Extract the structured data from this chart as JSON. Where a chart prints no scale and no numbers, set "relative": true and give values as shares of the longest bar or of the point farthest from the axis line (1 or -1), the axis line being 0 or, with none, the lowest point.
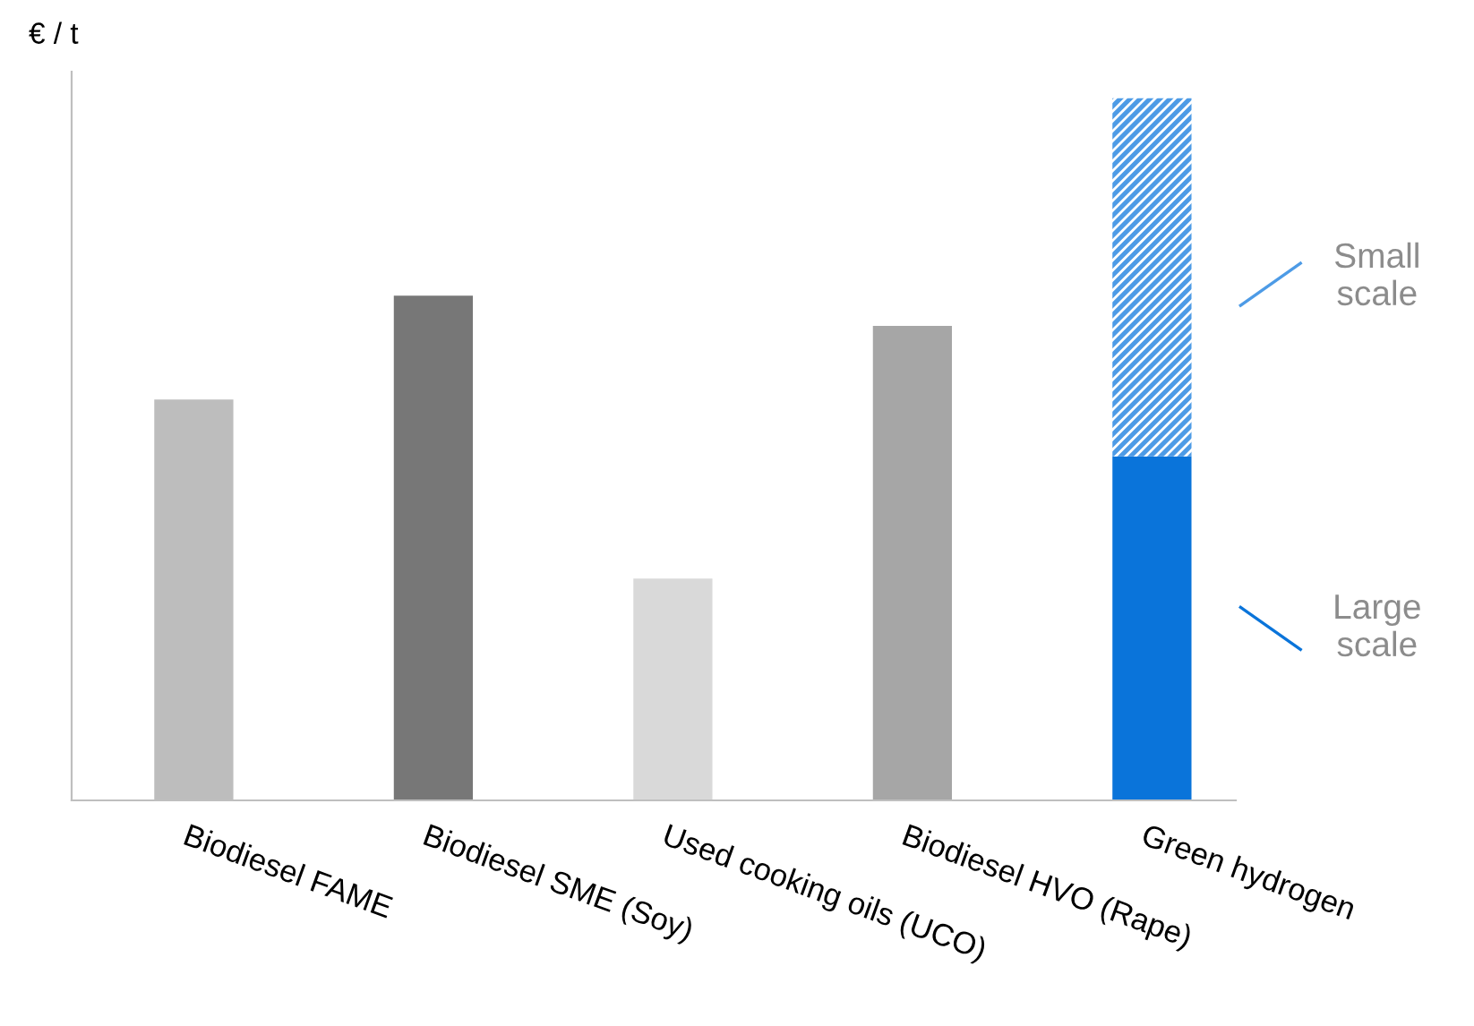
{
  "chart_data": {
    "type": "bar",
    "relative": true,
    "stacked": true,
    "ylabel": "€ / t",
    "categories": [
      "Biodiesel FAME",
      "Biodiesel SME (Soy)",
      "Used cooking oils (UCO)",
      "Biodiesel HVO (Rape)",
      "Green hydrogen"
    ],
    "series": [
      {
        "name": "Large scale",
        "colors": [
          "#bdbdbd",
          "#777777",
          "#d9d9d9",
          "#a6a6a6",
          "#0a74da"
        ],
        "values": [
          0.571,
          0.719,
          0.316,
          0.676,
          0.49
        ]
      },
      {
        "name": "Small scale",
        "color": "#4d9be6",
        "values": [
          null,
          null,
          null,
          null,
          0.51
        ]
      }
    ],
    "legend": "right"
  }
}
